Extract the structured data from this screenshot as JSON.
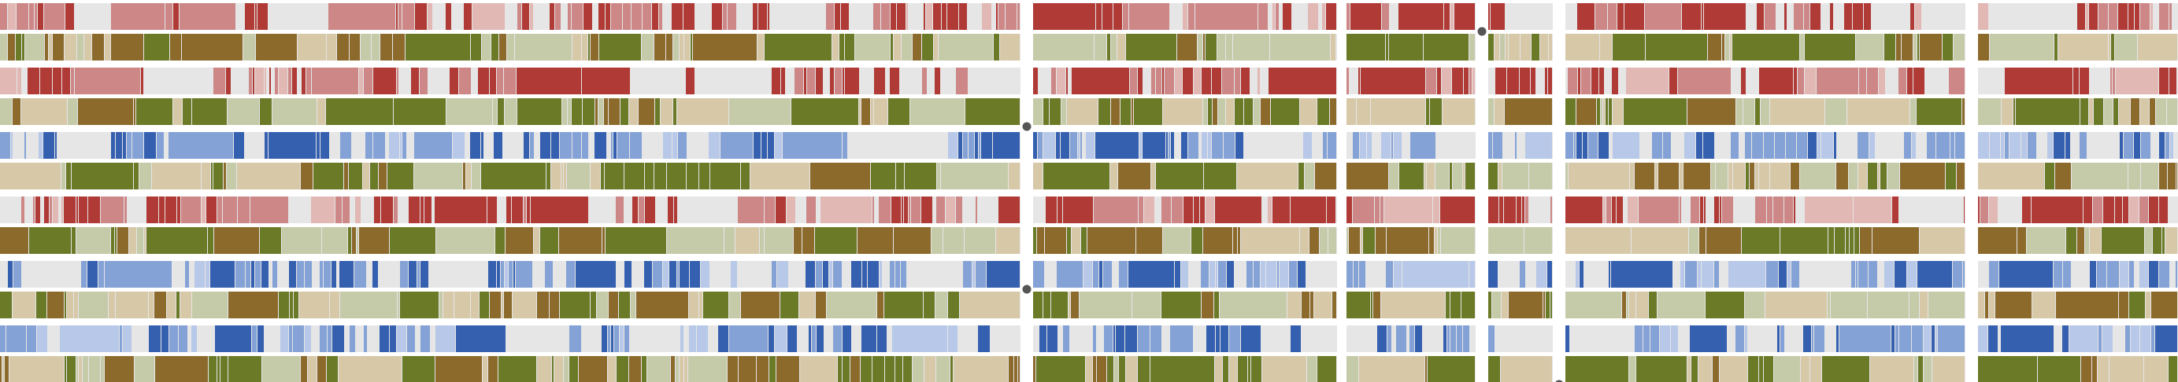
{
  "chart_data": {
    "type": "heatmap",
    "title": "",
    "xlabel": "",
    "ylabel": "",
    "rows": 12,
    "groups": [
      {
        "block": 0,
        "top_palette": "red",
        "bottom_palette": "olive"
      },
      {
        "block": 1,
        "top_palette": "red",
        "bottom_palette": "olive"
      },
      {
        "block": 2,
        "top_palette": "blue",
        "bottom_palette": "olive"
      },
      {
        "block": 3,
        "top_palette": "red",
        "bottom_palette": "olive"
      },
      {
        "block": 4,
        "top_palette": "blue",
        "bottom_palette": "olive"
      },
      {
        "block": 5,
        "top_palette": "blue",
        "bottom_palette": "olive"
      }
    ],
    "panels": 6,
    "markers": [
      {
        "row": 0,
        "panel": 3
      },
      {
        "row": 3,
        "panel": 1
      },
      {
        "row": 8,
        "panel": 0
      },
      {
        "row": 11,
        "panel": 4
      }
    ],
    "legend": "none",
    "grid": false
  },
  "colors": {
    "background": "#ffffff",
    "neutral": "#e6e6e6",
    "red_strong": "#b03a35",
    "red_mid": "#cc8786",
    "red_light": "#e1b8b4",
    "blue_strong": "#3560b0",
    "blue_mid": "#84a2d6",
    "blue_light": "#b8c8e8",
    "olive_strong": "#6b7a27",
    "olive_mid": "#8c6a2c",
    "olive_light": "#c5cba9",
    "tan_light": "#d7c8a8",
    "marker": "#555555"
  }
}
